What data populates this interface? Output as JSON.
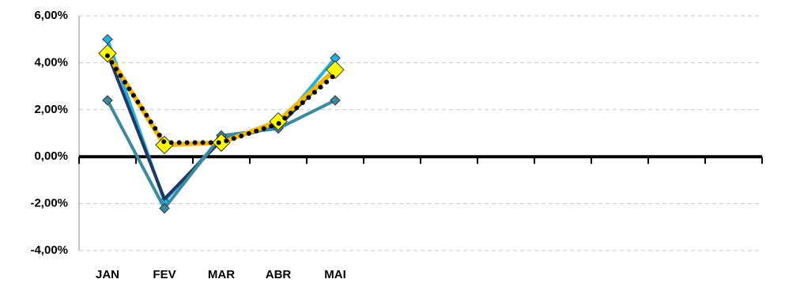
{
  "chart_data": {
    "type": "line",
    "categories": [
      "JAN",
      "FEV",
      "MAR",
      "ABR",
      "MAI",
      null,
      null,
      null,
      null,
      null,
      null,
      null
    ],
    "series": [
      {
        "color": "#1fb0e8",
        "marker": "diamond",
        "marker_color": "#1fb0e8",
        "line_style": "thin",
        "values": [
          5.0,
          -1.9,
          0.8,
          1.3,
          4.2,
          null,
          null,
          null,
          null,
          null,
          null,
          null
        ]
      },
      {
        "color": "#1f3864",
        "marker": "none",
        "line_style": "thin",
        "values": [
          4.4,
          -1.8,
          0.7,
          1.3,
          3.7,
          null,
          null,
          null,
          null,
          null,
          null,
          null
        ]
      },
      {
        "color": "#3a8aa0",
        "marker": "diamond",
        "marker_color": "#3a8aa0",
        "line_style": "thin",
        "values": [
          2.4,
          -2.2,
          0.9,
          1.2,
          2.4,
          null,
          null,
          null,
          null,
          null,
          null,
          null
        ]
      },
      {
        "color": "#f5b800",
        "marker": "diamond",
        "marker_color": "#ffff00",
        "line_style": "thick",
        "values": [
          4.4,
          0.5,
          0.6,
          1.5,
          3.7,
          null,
          null,
          null,
          null,
          null,
          null,
          null
        ]
      },
      {
        "color": "#000000",
        "marker": "none",
        "line_style": "dotted",
        "values": [
          4.3,
          0.6,
          0.6,
          1.4,
          3.5,
          null,
          null,
          null,
          null,
          null,
          null,
          null
        ]
      }
    ],
    "ylim": [
      -4,
      6
    ],
    "yticks": [
      {
        "value": -4,
        "label": "-4,00%"
      },
      {
        "value": -2,
        "label": "-2,00%"
      },
      {
        "value": 0,
        "label": "0,00%"
      },
      {
        "value": 2,
        "label": "2,00%"
      },
      {
        "value": 4,
        "label": "4,00%"
      },
      {
        "value": 6,
        "label": "6,00%"
      }
    ],
    "grid": true
  }
}
